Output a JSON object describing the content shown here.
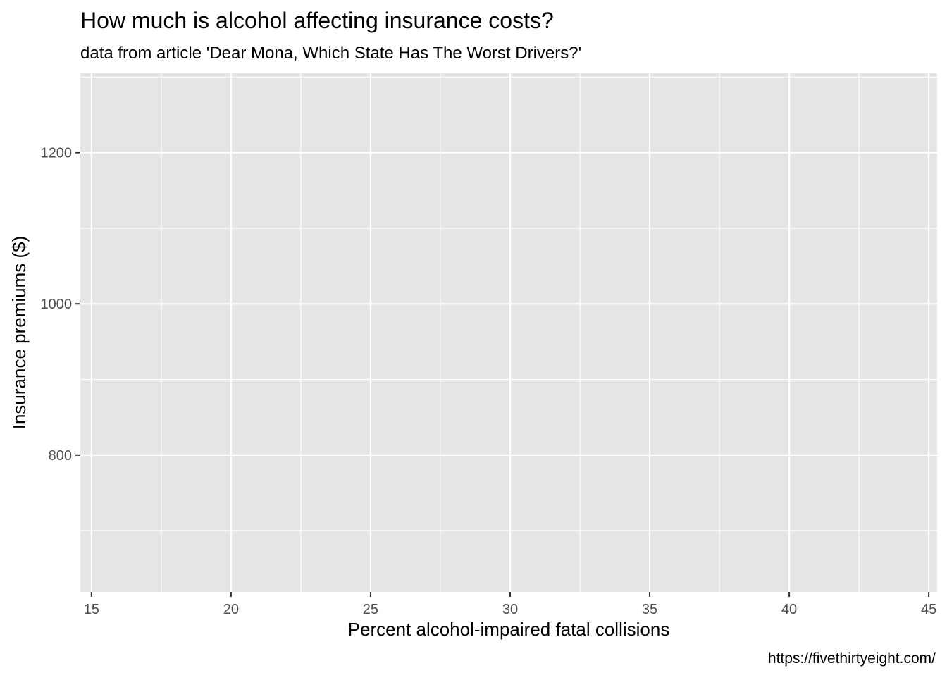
{
  "chart_data": {
    "type": "scatter",
    "title": "How much is alcohol affecting insurance costs?",
    "subtitle": "data from article 'Dear Mona, Which State Has The Worst Drivers?'",
    "xlabel": "Percent alcohol-impaired fatal collisions",
    "ylabel": "Insurance premiums ($)",
    "caption": "https://fivethirtyeight.com/",
    "xlim": [
      14.6,
      45.3
    ],
    "ylim": [
      619,
      1305
    ],
    "x_ticks": [
      15,
      20,
      25,
      30,
      35,
      40,
      45
    ],
    "x_tick_labels": [
      "15",
      "20",
      "25",
      "30",
      "35",
      "40",
      "45"
    ],
    "y_ticks": [
      800,
      1000,
      1200
    ],
    "y_tick_labels": [
      "800",
      "1000",
      "1200"
    ],
    "x_minor_ticks": [
      17.5,
      22.5,
      27.5,
      32.5,
      37.5,
      42.5
    ],
    "y_minor_ticks": [
      700,
      900,
      1100,
      1300
    ],
    "grid": true,
    "points": [],
    "colors": {
      "panel": "#e5e5e5",
      "grid": "#ffffff",
      "axis_text": "#4d4d4d",
      "tick": "#333333"
    }
  }
}
